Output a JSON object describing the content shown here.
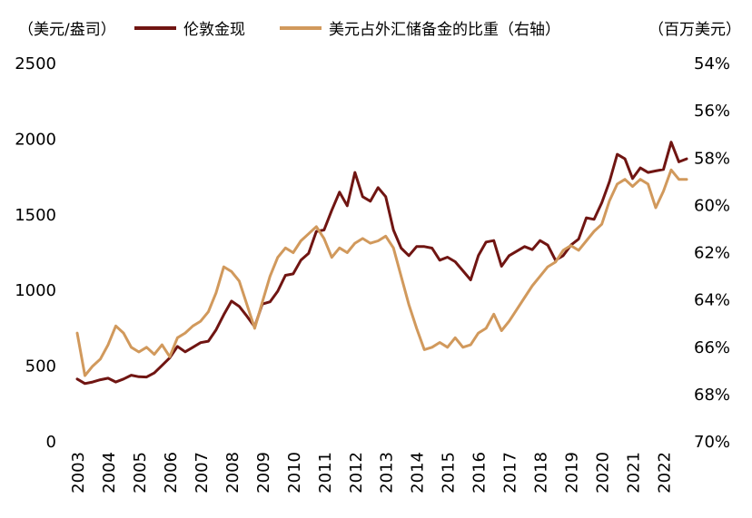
{
  "header": {
    "left_unit": "（美元/盎司）",
    "right_unit": "（百万美元）"
  },
  "legend": [
    {
      "label": "伦敦金现",
      "color": "#701512"
    },
    {
      "label": "美元占外汇储备金的比重（右轴）",
      "color": "#D1995C"
    }
  ],
  "chart_data": {
    "type": "line",
    "title": "",
    "x0": 2003,
    "dx": 0.25,
    "x_tick_labels": [
      "2003",
      "2004",
      "2005",
      "2006",
      "2007",
      "2008",
      "2009",
      "2010",
      "2011",
      "2012",
      "2013",
      "2014",
      "2015",
      "2016",
      "2017",
      "2018",
      "2019",
      "2020",
      "2021",
      "2022"
    ],
    "left_axis": {
      "label": "（美元/盎司）",
      "min": 0,
      "max": 2500,
      "ticks": [
        0,
        500,
        1000,
        1500,
        2000,
        2500
      ],
      "suffix": ""
    },
    "right_axis": {
      "label": "（百万美元）",
      "min": 54,
      "max": 70,
      "inverted": true,
      "ticks": [
        54,
        56,
        58,
        60,
        62,
        64,
        66,
        68,
        70
      ],
      "suffix": "%"
    },
    "grid": false,
    "legend_position": "top",
    "series": [
      {
        "name": "伦敦金现",
        "axis": "left",
        "color": "#701512",
        "values": [
          415,
          385,
          395,
          410,
          420,
          395,
          415,
          440,
          430,
          428,
          455,
          505,
          555,
          630,
          595,
          625,
          655,
          665,
          740,
          840,
          930,
          895,
          830,
          760,
          910,
          925,
          995,
          1100,
          1110,
          1200,
          1245,
          1390,
          1400,
          1530,
          1650,
          1560,
          1780,
          1620,
          1590,
          1680,
          1620,
          1400,
          1280,
          1230,
          1290,
          1290,
          1280,
          1200,
          1220,
          1190,
          1130,
          1070,
          1230,
          1320,
          1330,
          1160,
          1230,
          1260,
          1290,
          1270,
          1330,
          1300,
          1200,
          1230,
          1300,
          1340,
          1480,
          1470,
          1580,
          1720,
          1900,
          1870,
          1740,
          1810,
          1780,
          1790,
          1800,
          1980,
          1850,
          1870
        ]
      },
      {
        "name": "美元占外汇储备金的比重（右轴）",
        "axis": "right",
        "color": "#D1995C",
        "values": [
          65.4,
          67.2,
          66.8,
          66.5,
          65.9,
          65.1,
          65.4,
          66.0,
          66.2,
          66.0,
          66.3,
          65.9,
          66.4,
          65.6,
          65.4,
          65.1,
          64.9,
          64.5,
          63.7,
          62.6,
          62.8,
          63.2,
          64.2,
          65.2,
          64.1,
          63.0,
          62.2,
          61.8,
          62.0,
          61.5,
          61.2,
          60.9,
          61.4,
          62.2,
          61.8,
          62.0,
          61.6,
          61.4,
          61.6,
          61.5,
          61.3,
          61.8,
          63.0,
          64.2,
          65.2,
          66.1,
          66.0,
          65.8,
          66.0,
          65.6,
          66.0,
          65.9,
          65.4,
          65.2,
          64.6,
          65.3,
          64.9,
          64.4,
          63.9,
          63.4,
          63.0,
          62.6,
          62.4,
          61.9,
          61.7,
          61.9,
          61.5,
          61.1,
          60.8,
          59.8,
          59.1,
          58.9,
          59.2,
          58.9,
          59.1,
          60.1,
          59.4,
          58.5,
          58.9,
          58.9
        ]
      }
    ]
  }
}
